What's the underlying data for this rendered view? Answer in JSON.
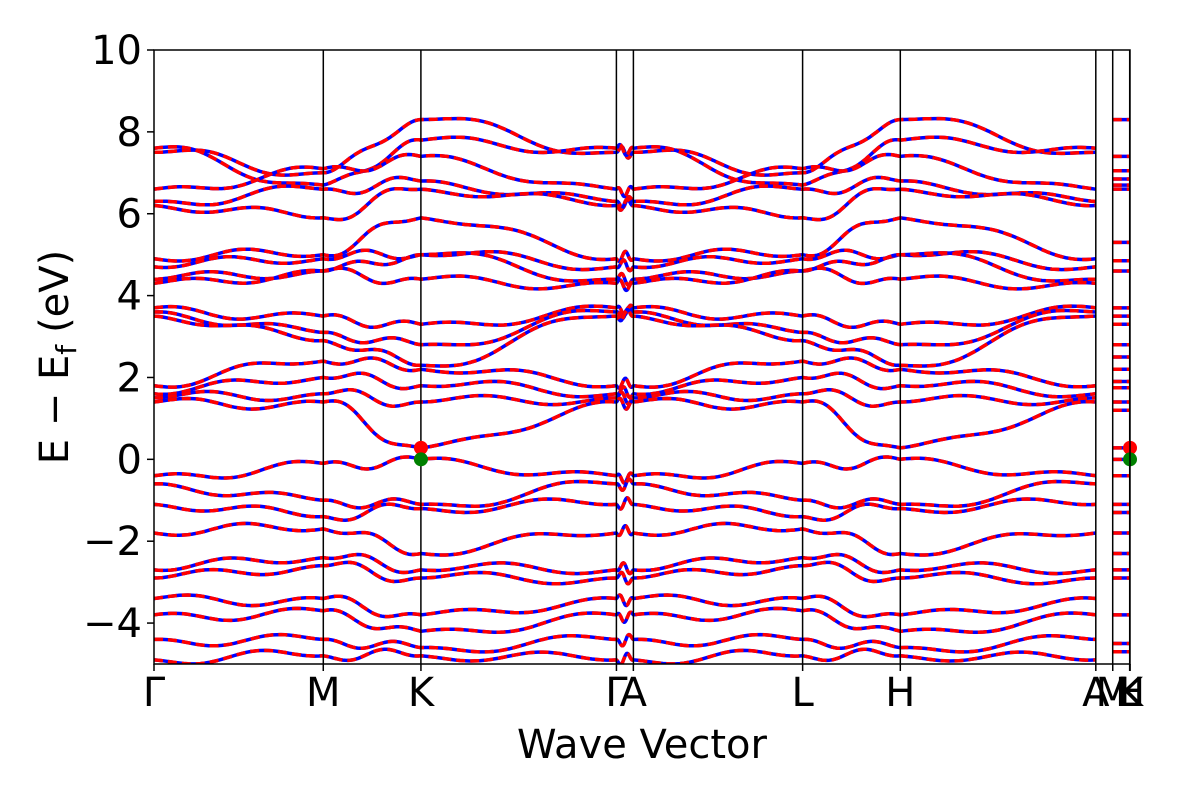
{
  "chart_data": {
    "type": "line",
    "title": "",
    "xlabel": "Wave Vector",
    "ylabel": "E − E",
    "ylabel_subscript": "f",
    "ylabel_unit": "(eV)",
    "ylim": [
      -5,
      10
    ],
    "y_ticks": [
      10,
      8,
      6,
      4,
      2,
      0,
      -2,
      -4
    ],
    "y_tick_labels": [
      "10",
      "8",
      "6",
      "4",
      "2",
      "0",
      "−2",
      "−4"
    ],
    "k_path": [
      {
        "label": "Γ",
        "k": 0.0
      },
      {
        "label": "M",
        "k": 1.0
      },
      {
        "label": "K",
        "k": 1.577
      },
      {
        "label": "Γ",
        "k": 2.732
      },
      {
        "label": "A",
        "k": 2.832
      },
      {
        "label": "L",
        "k": 3.832
      },
      {
        "label": "H",
        "k": 4.409
      },
      {
        "label": "A",
        "k": 5.564
      },
      {
        "label": "M",
        "k": 5.664
      },
      {
        "label": "L",
        "k": 5.764
      },
      {
        "label": "H",
        "k": 5.766
      },
      {
        "label": "K",
        "k": 5.766
      }
    ],
    "legend": "none",
    "grid": false,
    "band_edge_markers": [
      {
        "k": 1.577,
        "energy": 0.28,
        "color": "#ff0000",
        "role": "conduction band minimum"
      },
      {
        "k": 1.577,
        "energy": 0.0,
        "color": "#008000",
        "role": "valence band maximum"
      },
      {
        "k": 5.766,
        "energy": 0.28,
        "color": "#ff0000",
        "role": "conduction band minimum"
      },
      {
        "k": 5.766,
        "energy": 0.0,
        "color": "#008000",
        "role": "valence band maximum"
      }
    ],
    "series": [
      {
        "style": "solid",
        "color": "#0000ff"
      },
      {
        "style": "dashed",
        "color": "#ff0000"
      }
    ],
    "bands": [
      {
        "e": [
          7.5,
          7.0,
          8.3,
          7.5,
          7.5,
          7.0,
          8.3,
          7.5
        ]
      },
      {
        "e": [
          7.6,
          6.7,
          7.8,
          7.6,
          7.6,
          6.7,
          7.8,
          7.6
        ]
      },
      {
        "e": [
          6.6,
          7.1,
          7.4,
          6.6,
          6.6,
          7.1,
          7.4,
          6.6
        ]
      },
      {
        "e": [
          6.3,
          6.6,
          6.8,
          6.3,
          6.3,
          6.6,
          6.8,
          6.3
        ]
      },
      {
        "e": [
          6.2,
          5.9,
          6.6,
          6.2,
          6.2,
          5.9,
          6.6,
          6.2
        ]
      },
      {
        "e": [
          4.9,
          5.0,
          5.9,
          4.9,
          4.9,
          5.0,
          5.9,
          4.9
        ]
      },
      {
        "e": [
          4.7,
          4.9,
          5.0,
          4.7,
          4.7,
          4.9,
          5.0,
          4.7
        ]
      },
      {
        "e": [
          4.4,
          4.6,
          5.0,
          4.4,
          4.4,
          4.6,
          5.0,
          4.4
        ]
      },
      {
        "e": [
          4.3,
          4.6,
          4.4,
          4.3,
          4.3,
          4.6,
          4.4,
          4.3
        ]
      },
      {
        "e": [
          3.7,
          3.5,
          3.3,
          3.7,
          3.7,
          3.5,
          3.3,
          3.7
        ]
      },
      {
        "e": [
          3.6,
          3.1,
          2.8,
          3.6,
          3.6,
          3.1,
          2.8,
          3.6
        ]
      },
      {
        "e": [
          3.5,
          2.9,
          2.3,
          3.5,
          3.5,
          2.9,
          2.3,
          3.5
        ]
      },
      {
        "e": [
          1.8,
          2.4,
          2.2,
          1.8,
          1.8,
          2.4,
          2.2,
          1.8
        ]
      },
      {
        "e": [
          1.6,
          2.0,
          1.8,
          1.6,
          1.6,
          2.0,
          1.8,
          1.6
        ]
      },
      {
        "e": [
          1.5,
          1.6,
          1.4,
          1.5,
          1.5,
          1.6,
          1.4,
          1.5
        ]
      },
      {
        "e": [
          1.4,
          1.4,
          0.28,
          1.4,
          1.4,
          1.4,
          0.28,
          1.4
        ]
      },
      {
        "e": [
          -0.4,
          -0.1,
          0.0,
          -0.4,
          -0.4,
          -0.1,
          0.0,
          -0.4
        ]
      },
      {
        "e": [
          -0.6,
          -1.0,
          -1.1,
          -0.6,
          -0.6,
          -1.0,
          -1.1,
          -0.6
        ]
      },
      {
        "e": [
          -1.1,
          -1.4,
          -1.2,
          -1.1,
          -1.1,
          -1.4,
          -1.2,
          -1.1
        ]
      },
      {
        "e": [
          -1.8,
          -1.7,
          -2.3,
          -1.8,
          -1.8,
          -1.7,
          -2.3,
          -1.8
        ]
      },
      {
        "e": [
          -2.7,
          -2.4,
          -2.7,
          -2.7,
          -2.7,
          -2.4,
          -2.7,
          -2.7
        ]
      },
      {
        "e": [
          -2.9,
          -2.6,
          -2.9,
          -2.9,
          -2.9,
          -2.6,
          -2.9,
          -2.9
        ]
      },
      {
        "e": [
          -3.4,
          -3.4,
          -3.8,
          -3.4,
          -3.4,
          -3.4,
          -3.8,
          -3.4
        ]
      },
      {
        "e": [
          -3.8,
          -3.7,
          -4.2,
          -3.8,
          -3.8,
          -3.7,
          -4.2,
          -3.8
        ]
      },
      {
        "e": [
          -4.4,
          -4.4,
          -4.6,
          -4.4,
          -4.4,
          -4.4,
          -4.6,
          -4.4
        ]
      },
      {
        "e": [
          -4.9,
          -4.8,
          -4.8,
          -4.9,
          -4.9,
          -4.8,
          -4.8,
          -4.9
        ]
      }
    ],
    "band_k": [
      0.0,
      1.0,
      1.577,
      2.732,
      2.832,
      3.832,
      4.409,
      5.564
    ],
    "right_segment_levels": [
      8.3,
      7.4,
      7.05,
      6.85,
      6.7,
      6.6,
      5.3,
      4.85,
      4.6,
      3.7,
      3.5,
      3.3,
      2.8,
      2.5,
      2.2,
      1.9,
      1.75,
      1.4,
      1.2,
      0.28,
      0.0,
      -0.4,
      -1.1,
      -1.3,
      -1.8,
      -2.3,
      -2.7,
      -2.9,
      -3.8,
      -4.5,
      -4.7
    ]
  }
}
